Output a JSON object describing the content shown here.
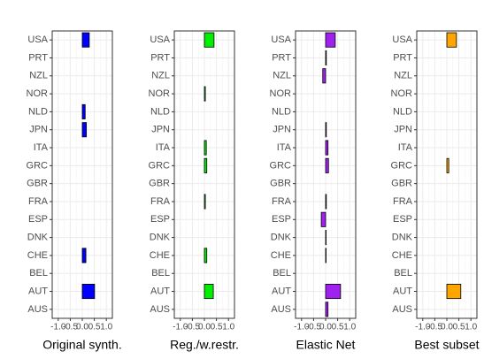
{
  "chart_data": [
    {
      "type": "bar",
      "orientation": "horizontal",
      "xlabel": "Original synth.",
      "color": "#0000ff",
      "categories": [
        "USA",
        "PRT",
        "NZL",
        "NOR",
        "NLD",
        "JPN",
        "ITA",
        "GRC",
        "GBR",
        "FRA",
        "ESP",
        "DNK",
        "CHE",
        "BEL",
        "AUT",
        "AUS"
      ],
      "values": [
        0.29,
        0,
        0,
        0,
        0.12,
        0.17,
        0,
        0,
        0,
        0,
        0,
        0,
        0.15,
        0,
        0.51,
        0
      ],
      "xlim": [
        -1.25,
        1.25
      ],
      "xticks": [
        {
          "value": -1,
          "label": "-1.0"
        },
        -0.5,
        {
          "value": 0,
          "label": "0.0"
        },
        0.5,
        {
          "value": 1,
          "label": "1.0"
        }
      ],
      "grid": true
    },
    {
      "type": "bar",
      "orientation": "horizontal",
      "xlabel": "Reg./w.restr.",
      "color": "#00ee00",
      "categories": [
        "USA",
        "PRT",
        "NZL",
        "NOR",
        "NLD",
        "JPN",
        "ITA",
        "GRC",
        "GBR",
        "FRA",
        "ESP",
        "DNK",
        "CHE",
        "BEL",
        "AUT",
        "AUS"
      ],
      "values": [
        0.4,
        0,
        0,
        0.04,
        0,
        0,
        0.08,
        0.1,
        0,
        0.04,
        0,
        0,
        0.1,
        0,
        0.37,
        0
      ],
      "xlim": [
        -1.25,
        1.25
      ],
      "xticks": [
        {
          "value": -1,
          "label": "-1.0"
        },
        -0.5,
        {
          "value": 0,
          "label": "0.0"
        },
        0.5,
        {
          "value": 1,
          "label": "1.0"
        }
      ],
      "grid": true
    },
    {
      "type": "bar",
      "orientation": "horizontal",
      "xlabel": "Elastic Net",
      "color": "#a020f0",
      "categories": [
        "USA",
        "PRT",
        "NZL",
        "NOR",
        "NLD",
        "JPN",
        "ITA",
        "GRC",
        "GBR",
        "FRA",
        "ESP",
        "DNK",
        "CHE",
        "BEL",
        "AUT",
        "AUS"
      ],
      "values": [
        0.4,
        0.03,
        -0.12,
        0,
        0,
        0.03,
        0.1,
        0.12,
        0,
        0.03,
        -0.18,
        0.02,
        0.02,
        0,
        0.62,
        0.1
      ],
      "xlim": [
        -1.25,
        1.25
      ],
      "xticks": [
        {
          "value": -1,
          "label": "-1.0"
        },
        -0.5,
        {
          "value": 0,
          "label": "0.0"
        },
        0.5,
        {
          "value": 1,
          "label": "1.0"
        }
      ],
      "grid": true
    },
    {
      "type": "bar",
      "orientation": "horizontal",
      "xlabel": "Best subset",
      "color": "#ffa500",
      "categories": [
        "USA",
        "PRT",
        "NZL",
        "NOR",
        "NLD",
        "JPN",
        "ITA",
        "GRC",
        "GBR",
        "FRA",
        "ESP",
        "DNK",
        "CHE",
        "BEL",
        "AUT",
        "AUS"
      ],
      "values": [
        0.4,
        0,
        0,
        0,
        0,
        0,
        0,
        0.08,
        0,
        0,
        0,
        0,
        0,
        0,
        0.58,
        0
      ],
      "xlim": [
        -1.25,
        1.25
      ],
      "xticks": [
        {
          "value": -1,
          "label": "-1.0"
        },
        -0.5,
        {
          "value": 0,
          "label": "0.0"
        },
        0.5,
        {
          "value": 1,
          "label": "1.0"
        }
      ],
      "grid": true
    }
  ]
}
